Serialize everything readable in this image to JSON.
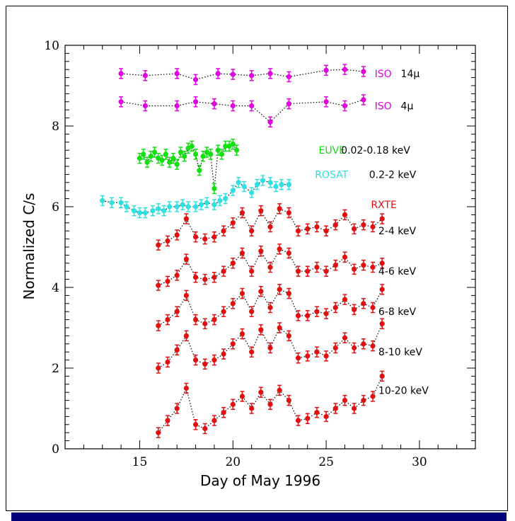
{
  "chart_data": {
    "type": "scatter",
    "xlabel": "Day of May 1996",
    "ylabel": "Normalized C/s",
    "xlim": [
      11,
      33
    ],
    "ylim": [
      0,
      10
    ],
    "x_ticks": [
      15,
      20,
      25,
      30
    ],
    "y_ticks": [
      0,
      2,
      4,
      6,
      8,
      10
    ],
    "x_tick_labels": [
      "15",
      "20",
      "25",
      "30"
    ],
    "y_tick_labels": [
      "0",
      "2",
      "4",
      "6",
      "8",
      "10"
    ],
    "grid": false,
    "colors": {
      "iso": "#e000e0",
      "euve": "#10e010",
      "rosat": "#30e0e0",
      "rxte": "#e01010",
      "ink": "#000000"
    },
    "series": [
      {
        "instrument": "ISO",
        "band": "14μ",
        "color": "#e000e0",
        "x": [
          14,
          15.3,
          17,
          18,
          19.2,
          20,
          21,
          22,
          23,
          25,
          26,
          27
        ],
        "y": [
          9.3,
          9.25,
          9.3,
          9.15,
          9.3,
          9.28,
          9.25,
          9.3,
          9.22,
          9.38,
          9.4,
          9.35
        ]
      },
      {
        "instrument": "ISO",
        "band": "4μ",
        "color": "#e000e0",
        "x": [
          14,
          15.3,
          17,
          18,
          19,
          20,
          21,
          22,
          23,
          25,
          26,
          27
        ],
        "y": [
          8.6,
          8.5,
          8.5,
          8.6,
          8.55,
          8.5,
          8.5,
          8.1,
          8.55,
          8.6,
          8.5,
          8.65
        ]
      },
      {
        "instrument": "EUVE",
        "band": "0.02–0.18 keV",
        "color": "#10e010",
        "x": [
          15,
          15.2,
          15.4,
          15.6,
          15.8,
          16.0,
          16.2,
          16.4,
          16.6,
          16.8,
          17.0,
          17.2,
          17.4,
          17.6,
          17.8,
          18.0,
          18.2,
          18.4,
          18.6,
          18.8,
          19.0,
          19.2,
          19.4,
          19.6,
          19.8,
          20.0,
          20.2
        ],
        "y": [
          7.2,
          7.3,
          7.1,
          7.25,
          7.35,
          7.2,
          7.15,
          7.3,
          7.1,
          7.2,
          7.05,
          7.35,
          7.25,
          7.45,
          7.5,
          7.3,
          6.9,
          7.25,
          7.35,
          7.3,
          6.45,
          7.4,
          7.3,
          7.5,
          7.5,
          7.55,
          7.4
        ]
      },
      {
        "instrument": "ROSAT",
        "band": "0.2–2 keV",
        "color": "#30e0e0",
        "x": [
          13.0,
          13.5,
          14.0,
          14.3,
          14.7,
          15.0,
          15.3,
          15.7,
          16.0,
          16.3,
          16.6,
          17.0,
          17.3,
          17.6,
          18.0,
          18.3,
          18.6,
          19.0,
          19.3,
          19.6,
          20.0,
          20.3,
          20.6,
          21.0,
          21.3,
          21.6,
          22.0,
          22.3,
          22.6,
          23.0
        ],
        "y": [
          6.15,
          6.1,
          6.1,
          6.0,
          5.9,
          5.85,
          5.85,
          5.9,
          5.95,
          5.9,
          6.0,
          6.0,
          6.05,
          6.0,
          6.0,
          6.05,
          6.1,
          6.05,
          6.15,
          6.2,
          6.4,
          6.6,
          6.5,
          6.35,
          6.55,
          6.65,
          6.6,
          6.5,
          6.55,
          6.55
        ]
      },
      {
        "instrument": "RXTE",
        "band": "2–4 keV",
        "color": "#e01010",
        "x": [
          16,
          16.5,
          17.0,
          17.5,
          18.0,
          18.5,
          19.0,
          19.5,
          20.0,
          20.5,
          21.0,
          21.5,
          22.0,
          22.5,
          23.0,
          23.5,
          24.0,
          24.5,
          25.0,
          25.5,
          26.0,
          26.5,
          27.0,
          27.5,
          28.0
        ],
        "y": [
          5.05,
          5.15,
          5.3,
          5.7,
          5.25,
          5.2,
          5.25,
          5.4,
          5.6,
          5.85,
          5.4,
          5.9,
          5.5,
          5.95,
          5.85,
          5.4,
          5.45,
          5.5,
          5.4,
          5.55,
          5.8,
          5.45,
          5.55,
          5.5,
          5.7
        ]
      },
      {
        "instrument": "RXTE",
        "band": "4–6 keV",
        "color": "#e01010",
        "x": [
          16,
          16.5,
          17.0,
          17.5,
          18.0,
          18.5,
          19.0,
          19.5,
          20.0,
          20.5,
          21.0,
          21.5,
          22.0,
          22.5,
          23.0,
          23.5,
          24.0,
          24.5,
          25.0,
          25.5,
          26.0,
          26.5,
          27.0,
          27.5,
          28.0
        ],
        "y": [
          4.05,
          4.15,
          4.3,
          4.7,
          4.25,
          4.2,
          4.25,
          4.4,
          4.6,
          4.85,
          4.4,
          4.9,
          4.5,
          4.95,
          4.85,
          4.4,
          4.4,
          4.5,
          4.4,
          4.55,
          4.75,
          4.45,
          4.55,
          4.5,
          4.6
        ]
      },
      {
        "instrument": "RXTE",
        "band": "6–8 keV",
        "color": "#e01010",
        "x": [
          16,
          16.5,
          17.0,
          17.5,
          18.0,
          18.5,
          19.0,
          19.5,
          20.0,
          20.5,
          21.0,
          21.5,
          22.0,
          22.5,
          23.0,
          23.5,
          24.0,
          24.5,
          25.0,
          25.5,
          26.0,
          26.5,
          27.0,
          27.5,
          28.0
        ],
        "y": [
          3.05,
          3.2,
          3.4,
          3.8,
          3.2,
          3.1,
          3.2,
          3.4,
          3.6,
          3.85,
          3.4,
          3.9,
          3.5,
          3.95,
          3.85,
          3.3,
          3.3,
          3.4,
          3.35,
          3.5,
          3.7,
          3.45,
          3.6,
          3.5,
          3.95
        ]
      },
      {
        "instrument": "RXTE",
        "band": "8–10 keV",
        "color": "#e01010",
        "x": [
          16,
          16.5,
          17.0,
          17.5,
          18.0,
          18.5,
          19.0,
          19.5,
          20.0,
          20.5,
          21.0,
          21.5,
          22.0,
          22.5,
          23.0,
          23.5,
          24.0,
          24.5,
          25.0,
          25.5,
          26.0,
          26.5,
          27.0,
          27.5,
          28.0
        ],
        "y": [
          2.0,
          2.15,
          2.45,
          2.8,
          2.2,
          2.1,
          2.2,
          2.35,
          2.6,
          2.85,
          2.4,
          2.95,
          2.5,
          3.0,
          2.8,
          2.25,
          2.3,
          2.4,
          2.3,
          2.5,
          2.75,
          2.5,
          2.6,
          2.55,
          3.1
        ]
      },
      {
        "instrument": "RXTE",
        "band": "10–20 keV",
        "color": "#e01010",
        "x": [
          16,
          16.5,
          17.0,
          17.5,
          18.0,
          18.5,
          19.0,
          19.5,
          20.0,
          20.5,
          21.0,
          21.5,
          22.0,
          22.5,
          23.0,
          23.5,
          24.0,
          24.5,
          25.0,
          25.5,
          26.0,
          26.5,
          27.0,
          27.5,
          28.0
        ],
        "y": [
          0.4,
          0.7,
          1.0,
          1.5,
          0.6,
          0.5,
          0.7,
          0.9,
          1.1,
          1.3,
          1.0,
          1.4,
          1.1,
          1.45,
          1.2,
          0.7,
          0.75,
          0.9,
          0.8,
          1.0,
          1.2,
          1.0,
          1.2,
          1.3,
          1.8
        ]
      }
    ],
    "annotations": [
      {
        "text": "ISO",
        "color": "#e000e0",
        "at": [
          27.6,
          9.3
        ]
      },
      {
        "text": "14μ",
        "color": "#000000",
        "at": [
          29.0,
          9.3
        ]
      },
      {
        "text": "ISO",
        "color": "#e000e0",
        "at": [
          27.6,
          8.5
        ]
      },
      {
        "text": "4μ",
        "color": "#000000",
        "at": [
          29.0,
          8.5
        ]
      },
      {
        "text": "EUVE",
        "color": "#10e010",
        "at": [
          24.6,
          7.4
        ]
      },
      {
        "text": "0.02-0.18 keV",
        "color": "#000000",
        "at": [
          25.8,
          7.4
        ]
      },
      {
        "text": "ROSAT",
        "color": "#30e0e0",
        "at": [
          24.4,
          6.8
        ]
      },
      {
        "text": "0.2-2 keV",
        "color": "#000000",
        "at": [
          27.3,
          6.8
        ]
      },
      {
        "text": "RXTE",
        "color": "#e01010",
        "at": [
          27.4,
          6.05
        ]
      },
      {
        "text": "2-4 keV",
        "color": "#000000",
        "at": [
          27.8,
          5.4
        ]
      },
      {
        "text": "4-6 keV",
        "color": "#000000",
        "at": [
          27.8,
          4.4
        ]
      },
      {
        "text": "6-8 keV",
        "color": "#000000",
        "at": [
          27.8,
          3.4
        ]
      },
      {
        "text": "8-10 keV",
        "color": "#000000",
        "at": [
          27.8,
          2.4
        ]
      },
      {
        "text": "10-20 keV",
        "color": "#000000",
        "at": [
          27.8,
          1.45
        ]
      }
    ]
  }
}
